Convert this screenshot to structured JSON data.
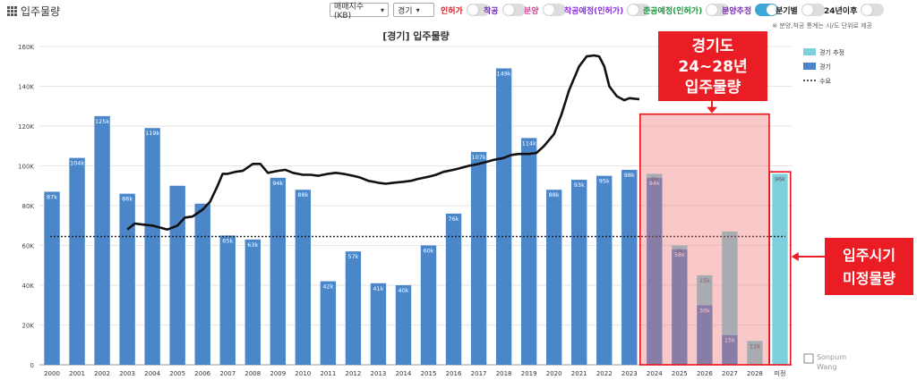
{
  "app": {
    "title": "입주물량"
  },
  "controls": {
    "index_select": "매매지수(KB)",
    "region_select": "경기",
    "toggles": [
      {
        "label": "인허가",
        "color": "#d9232d",
        "on": false
      },
      {
        "label": "착공",
        "color": "#6a2fb0",
        "on": false
      },
      {
        "label": "분양",
        "color": "#e0409a",
        "on": false
      },
      {
        "label": "착공예정(인허가)",
        "color": "#8a2be2",
        "on": false
      },
      {
        "label": "준공예정(인허가)",
        "color": "#1a9a3a",
        "on": false
      },
      {
        "label": "분양추정",
        "color": "#7a2fb0",
        "on": true
      },
      {
        "label": "분기별",
        "color": "#222222",
        "on": false
      },
      {
        "label": "24년이후",
        "color": "#222222",
        "on": false
      }
    ]
  },
  "note": "※ 분양,착공 통계는 시/도 단위로 제공",
  "annotations": {
    "box1_lines": [
      "경기도",
      "24~28년",
      "입주물량"
    ],
    "box2_lines": [
      "입주시기",
      "미정물량"
    ]
  },
  "watermark": {
    "line1": "Sonpum",
    "line2": "Wang"
  },
  "chart_data": {
    "type": "bar",
    "title": "[경기] 입주물량",
    "categories": [
      "2000",
      "2001",
      "2002",
      "2003",
      "2004",
      "2005",
      "2006",
      "2007",
      "2008",
      "2009",
      "2010",
      "2011",
      "2012",
      "2013",
      "2014",
      "2015",
      "2016",
      "2017",
      "2018",
      "2019",
      "2020",
      "2021",
      "2022",
      "2023",
      "2024",
      "2025",
      "2026",
      "2027",
      "2028",
      "미정"
    ],
    "ylim": [
      0,
      160000
    ],
    "yticks": [
      0,
      20000,
      40000,
      60000,
      80000,
      100000,
      120000,
      140000,
      160000
    ],
    "ytick_labels": [
      "0",
      "20K",
      "40K",
      "60K",
      "80K",
      "100K",
      "120K",
      "140K",
      "160K"
    ],
    "series": [
      {
        "name": "경기",
        "color": "#4a86c8",
        "values": [
          87000,
          104000,
          125000,
          86000,
          119000,
          90000,
          81000,
          65000,
          63000,
          94000,
          88000,
          42000,
          57000,
          41000,
          40000,
          60000,
          76000,
          107000,
          149000,
          114000,
          88000,
          93000,
          95000,
          98000,
          94000,
          58000,
          30000,
          15000,
          0,
          0
        ],
        "labels": [
          "87k",
          "104k",
          "125k",
          "86k",
          "119k",
          "",
          "",
          "65k",
          "63k",
          "94k",
          "88k",
          "42k",
          "57k",
          "41k",
          "40k",
          "60k",
          "76k",
          "107k",
          "149k",
          "114k",
          "88k",
          "93k",
          "95k",
          "98k",
          "94k",
          "58k",
          "30k",
          "15k",
          "",
          ""
        ]
      },
      {
        "name": "경기 추정",
        "color": "#7fd0de",
        "values": [
          0,
          0,
          0,
          0,
          0,
          0,
          0,
          0,
          0,
          0,
          0,
          0,
          0,
          0,
          0,
          0,
          0,
          0,
          0,
          0,
          0,
          0,
          0,
          0,
          2000,
          2000,
          15000,
          52000,
          12000,
          96000
        ],
        "labels": [
          "",
          "",
          "",
          "",
          "",
          "",
          "",
          "",
          "",
          "",
          "",
          "",
          "",
          "",
          "",
          "",
          "",
          "",
          "",
          "",
          "",
          "",
          "",
          "",
          "2k",
          "2k",
          "15k",
          "",
          "12k",
          "96k"
        ]
      }
    ],
    "demand_line": {
      "name": "수요",
      "value": 64500
    },
    "index_line": {
      "x": [
        3,
        3.3,
        3.6,
        4,
        4.3,
        4.6,
        5,
        5.3,
        5.6,
        6,
        6.3,
        6.6,
        6.8,
        7,
        7.3,
        7.6,
        8,
        8.3,
        8.6,
        9,
        9.3,
        9.6,
        10,
        10.3,
        10.6,
        11,
        11.3,
        11.6,
        12,
        12.3,
        12.6,
        13,
        13.3,
        13.6,
        14,
        14.3,
        14.6,
        15,
        15.3,
        15.6,
        16,
        16.3,
        16.6,
        17,
        17.3,
        17.6,
        18,
        18.3,
        18.6,
        19,
        19.3,
        19.6,
        20,
        20.3,
        20.6,
        21,
        21.3,
        21.6,
        21.8,
        22,
        22.2,
        22.5,
        22.8,
        23,
        23.4
      ],
      "y": [
        68000,
        71000,
        70500,
        70000,
        69000,
        68000,
        70000,
        74000,
        74500,
        78000,
        82000,
        90000,
        96000,
        96000,
        97000,
        97500,
        101000,
        101000,
        96500,
        97500,
        98000,
        96500,
        95500,
        95500,
        95000,
        96000,
        96500,
        96000,
        95000,
        94000,
        92500,
        91500,
        91000,
        91500,
        92000,
        92500,
        93500,
        94500,
        95500,
        97000,
        98000,
        99000,
        100000,
        101000,
        102000,
        103000,
        104000,
        105500,
        106000,
        106000,
        106500,
        110000,
        116000,
        126000,
        138000,
        150000,
        155000,
        155500,
        155000,
        150000,
        140000,
        135000,
        133000,
        134000,
        133500
      ]
    },
    "legend": [
      {
        "label": "경기 추정",
        "type": "box",
        "color": "#7fd0de"
      },
      {
        "label": "경기",
        "type": "box",
        "color": "#4a86c8"
      },
      {
        "label": "수요",
        "type": "dotted"
      }
    ]
  }
}
